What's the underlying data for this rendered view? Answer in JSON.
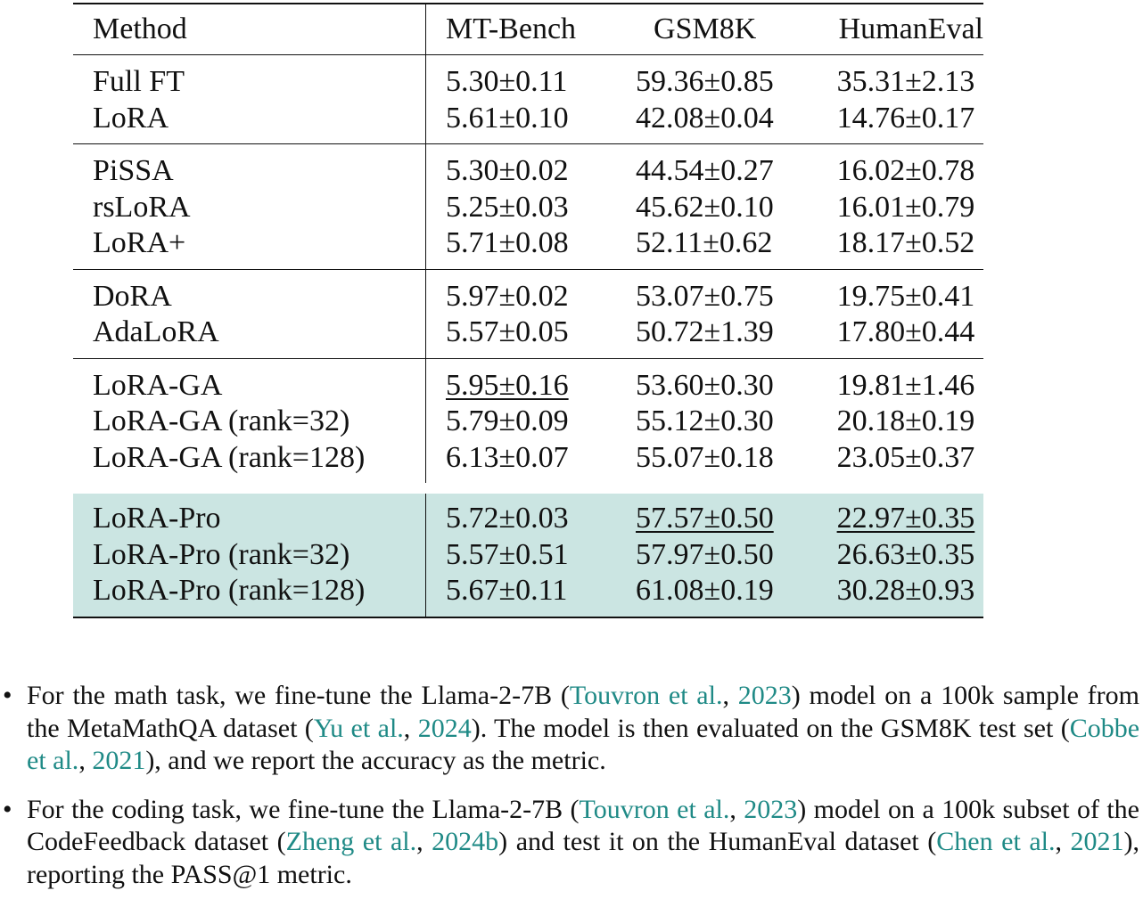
{
  "table": {
    "headers": [
      "Method",
      "MT-Bench",
      "GSM8K",
      "HumanEval"
    ],
    "groups": [
      [
        {
          "method": "Full FT",
          "mt": "5.30±0.11",
          "gsm": "59.36±0.85",
          "he": "35.31±2.13"
        },
        {
          "method": "LoRA",
          "mt": "5.61±0.10",
          "gsm": "42.08±0.04",
          "he": "14.76±0.17"
        }
      ],
      [
        {
          "method": "PiSSA",
          "mt": "5.30±0.02",
          "gsm": "44.54±0.27",
          "he": "16.02±0.78"
        },
        {
          "method": "rsLoRA",
          "mt": "5.25±0.03",
          "gsm": "45.62±0.10",
          "he": "16.01±0.79"
        },
        {
          "method": "LoRA+",
          "mt": "5.71±0.08",
          "gsm": "52.11±0.62",
          "he": "18.17±0.52"
        }
      ],
      [
        {
          "method": "DoRA",
          "mt": "5.97±0.02",
          "gsm": "53.07±0.75",
          "he": "19.75±0.41"
        },
        {
          "method": "AdaLoRA",
          "mt": "5.57±0.05",
          "gsm": "50.72±1.39",
          "he": "17.80±0.44"
        }
      ],
      [
        {
          "method": "LoRA-GA",
          "mt": "5.95±0.16",
          "gsm": "53.60±0.30",
          "he": "19.81±1.46"
        },
        {
          "method": "LoRA-GA (rank=32)",
          "mt": "5.79±0.09",
          "gsm": "55.12±0.30",
          "he": "20.18±0.19"
        },
        {
          "method": "LoRA-GA (rank=128)",
          "mt": "6.13±0.07",
          "gsm": "55.07±0.18",
          "he": "23.05±0.37"
        }
      ],
      [
        {
          "method": "LoRA-Pro",
          "mt": "5.72±0.03",
          "gsm": "57.57±0.50",
          "he": "22.97±0.35"
        },
        {
          "method": "LoRA-Pro (rank=32)",
          "mt": "5.57±0.51",
          "gsm": "57.97±0.50",
          "he": "26.63±0.35"
        },
        {
          "method": "LoRA-Pro (rank=128)",
          "mt": "5.67±0.11",
          "gsm": "61.08±0.19",
          "he": "30.28±0.93"
        }
      ]
    ],
    "highlight_color": "#cbe5e2"
  },
  "bullets": {
    "math": {
      "t1": "For the math task, we fine-tune the Llama-2-7B (",
      "c1a": "Touvron et al.",
      "s1": ", ",
      "c1b": "2023",
      "t2": ") model on a 100k sample from the MetaMathQA dataset (",
      "c2a": "Yu et al.",
      "s2": ", ",
      "c2b": "2024",
      "t3": ").  The model is then evaluated on the GSM8K test set (",
      "c3a": "Cobbe et al.",
      "s3": ", ",
      "c3b": "2021",
      "t4": "), and we report the accuracy as the metric."
    },
    "code": {
      "t1": "For the coding task, we fine-tune the Llama-2-7B (",
      "c1a": "Touvron et al.",
      "s1": ", ",
      "c1b": "2023",
      "t2": ") model on a 100k subset of the CodeFeedback dataset (",
      "c2a": "Zheng et al.",
      "s2": ", ",
      "c2b": "2024b",
      "t3": ") and test it on the HumanEval dataset (",
      "c3a": "Chen et al.",
      "s3": ", ",
      "c3b": "2021",
      "t4": "), reporting the PASS@1 metric."
    },
    "bullet_char": "•",
    "citation_color": "#1f8a86"
  }
}
